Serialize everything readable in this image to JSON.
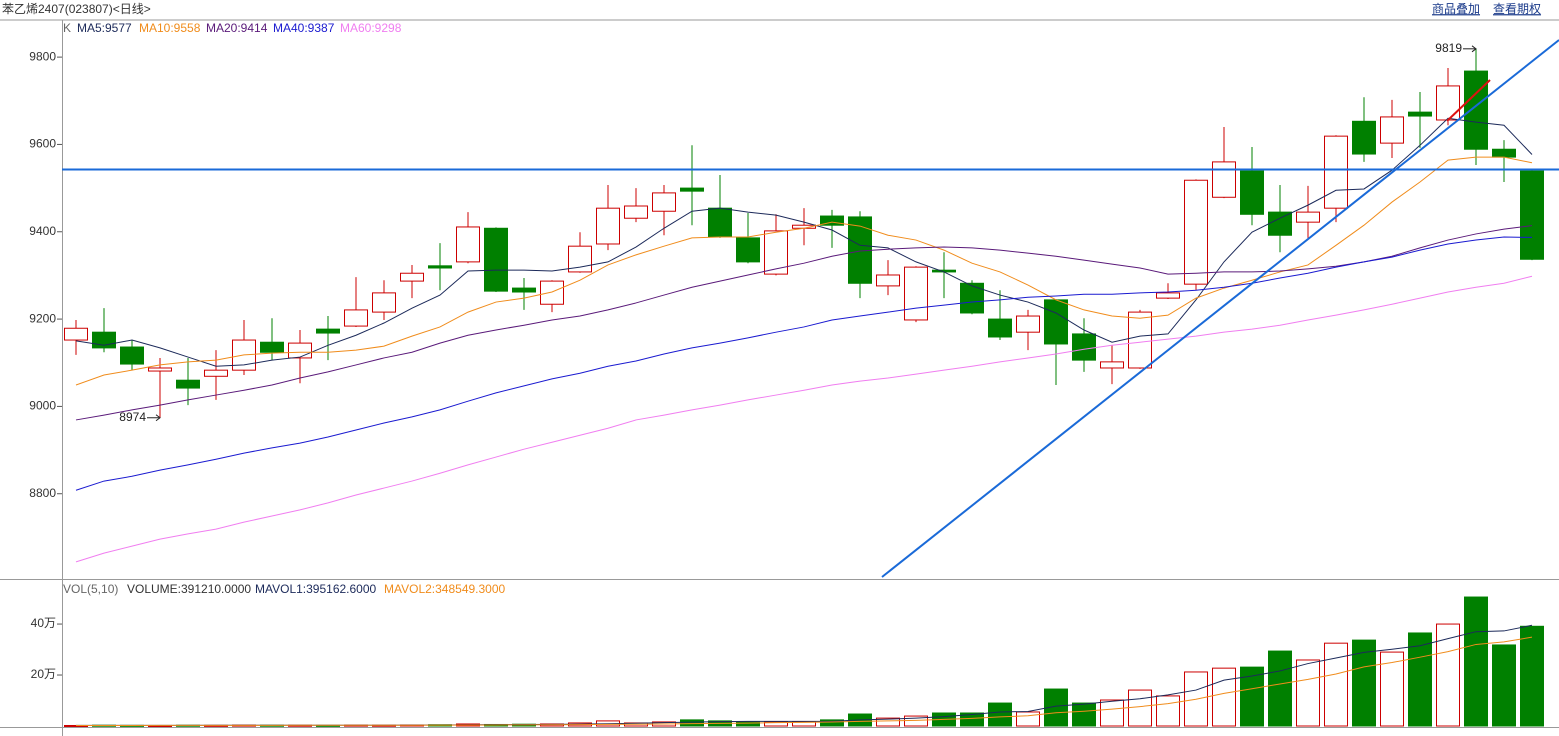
{
  "header": {
    "links": [
      "商品叠加",
      "查看期权"
    ]
  },
  "chart_data": [
    {
      "type": "candlestick",
      "title": "苯乙烯2407(023807)<日线>",
      "label": "K",
      "up_color": "#cc0000",
      "down_color": "#008000",
      "open": [
        9152,
        9170,
        9136,
        9081,
        9060,
        9069,
        9083,
        9147,
        9111,
        9177,
        9184,
        9216,
        9287,
        9322,
        9331,
        9408,
        9271,
        9234,
        9308,
        9372,
        9431,
        9447,
        9500,
        9454,
        9386,
        9303,
        9408,
        9436,
        9434,
        9276,
        9198,
        9312,
        9282,
        9200,
        9170,
        9244,
        9166,
        9088,
        9088,
        9248,
        9280,
        9479,
        9539,
        9445,
        9422,
        9454,
        9653,
        9603,
        9674,
        9656,
        9768,
        9589,
        9539
      ],
      "high": [
        9198,
        9225,
        9152,
        9111,
        9111,
        9129,
        9198,
        9202,
        9175,
        9207,
        9296,
        9289,
        9324,
        9374,
        9445,
        9410,
        9294,
        9289,
        9399,
        9507,
        9500,
        9507,
        9598,
        9530,
        9443,
        9440,
        9454,
        9450,
        9447,
        9335,
        9321,
        9353,
        9289,
        9266,
        9221,
        9246,
        9202,
        9140,
        9221,
        9282,
        9520,
        9640,
        9594,
        9507,
        9505,
        9621,
        9708,
        9702,
        9720,
        9775,
        9819,
        9610,
        9540
      ],
      "low": [
        9118,
        9124,
        9083,
        8974,
        9003,
        9015,
        9072,
        9106,
        9053,
        9106,
        9182,
        9198,
        9248,
        9266,
        9328,
        9262,
        9221,
        9216,
        9306,
        9358,
        9422,
        9392,
        9415,
        9386,
        9328,
        9300,
        9369,
        9363,
        9248,
        9255,
        9193,
        9248,
        9211,
        9152,
        9129,
        9049,
        9079,
        9051,
        9086,
        9246,
        9266,
        9477,
        9415,
        9353,
        9386,
        9422,
        9560,
        9569,
        9592,
        9644,
        9553,
        9514,
        9335
      ],
      "close": [
        9179,
        9134,
        9097,
        9088,
        9042,
        9083,
        9152,
        9124,
        9145,
        9168,
        9221,
        9260,
        9305,
        9317,
        9411,
        9264,
        9262,
        9287,
        9367,
        9454,
        9459,
        9489,
        9493,
        9388,
        9331,
        9402,
        9415,
        9415,
        9282,
        9301,
        9319,
        9308,
        9214,
        9159,
        9207,
        9143,
        9106,
        9102,
        9216,
        9260,
        9518,
        9560,
        9440,
        9392,
        9445,
        9619,
        9578,
        9663,
        9665,
        9734,
        9589,
        9571,
        9337
      ],
      "series": [
        {
          "name": "MA5:9577",
          "color": "#1c2a5a",
          "values": [
            9150,
            9140,
            9152,
            9134,
            9113,
            9092,
            9095,
            9106,
            9113,
            9140,
            9163,
            9191,
            9225,
            9255,
            9310,
            9312,
            9312,
            9310,
            9319,
            9331,
            9365,
            9408,
            9447,
            9454,
            9445,
            9438,
            9422,
            9404,
            9369,
            9363,
            9331,
            9308,
            9276,
            9255,
            9239,
            9214,
            9175,
            9147,
            9161,
            9166,
            9244,
            9331,
            9399,
            9431,
            9461,
            9495,
            9498,
            9541,
            9598,
            9660,
            9651,
            9644,
            9577
          ]
        },
        {
          "name": "MA10:9558",
          "color": "#f08c1c",
          "values": [
            9049,
            9072,
            9083,
            9095,
            9102,
            9106,
            9118,
            9122,
            9124,
            9124,
            9129,
            9138,
            9161,
            9182,
            9216,
            9239,
            9248,
            9262,
            9289,
            9324,
            9347,
            9367,
            9386,
            9388,
            9388,
            9399,
            9408,
            9422,
            9413,
            9392,
            9381,
            9358,
            9328,
            9308,
            9278,
            9244,
            9221,
            9207,
            9202,
            9209,
            9248,
            9271,
            9289,
            9308,
            9324,
            9369,
            9415,
            9468,
            9514,
            9564,
            9571,
            9571,
            9558
          ]
        },
        {
          "name": "MA20:9414",
          "color": "#5a1a7a",
          "values": [
            8969,
            8980,
            8992,
            9003,
            9015,
            9026,
            9037,
            9049,
            9065,
            9079,
            9095,
            9111,
            9124,
            9145,
            9163,
            9175,
            9186,
            9198,
            9207,
            9221,
            9237,
            9255,
            9273,
            9287,
            9301,
            9315,
            9328,
            9344,
            9356,
            9360,
            9363,
            9365,
            9363,
            9358,
            9351,
            9344,
            9335,
            9326,
            9317,
            9303,
            9305,
            9308,
            9308,
            9310,
            9315,
            9321,
            9331,
            9344,
            9363,
            9381,
            9395,
            9406,
            9414
          ]
        },
        {
          "name": "MA40:9387",
          "color": "#1a1ad0",
          "values": [
            8808,
            8829,
            8840,
            8854,
            8866,
            8879,
            8893,
            8905,
            8916,
            8930,
            8946,
            8962,
            8976,
            8992,
            9012,
            9031,
            9047,
            9063,
            9076,
            9092,
            9104,
            9120,
            9134,
            9145,
            9157,
            9170,
            9182,
            9198,
            9207,
            9216,
            9225,
            9232,
            9239,
            9244,
            9250,
            9253,
            9257,
            9257,
            9260,
            9262,
            9266,
            9273,
            9282,
            9294,
            9305,
            9319,
            9331,
            9342,
            9358,
            9372,
            9381,
            9388,
            9387
          ]
        },
        {
          "name": "MA60:9298",
          "color": "#f07ef0",
          "values": [
            8644,
            8664,
            8680,
            8696,
            8708,
            8719,
            8735,
            8749,
            8763,
            8779,
            8797,
            8813,
            8829,
            8847,
            8866,
            8884,
            8902,
            8918,
            8934,
            8950,
            8969,
            8980,
            8992,
            9003,
            9015,
            9026,
            9037,
            9049,
            9058,
            9065,
            9074,
            9083,
            9092,
            9102,
            9111,
            9120,
            9131,
            9140,
            9147,
            9154,
            9161,
            9170,
            9177,
            9186,
            9198,
            9209,
            9221,
            9234,
            9248,
            9262,
            9273,
            9282,
            9298
          ]
        }
      ],
      "ylim": [
        8607,
        9885
      ],
      "yticks": [
        8800,
        9000,
        9200,
        9400,
        9600,
        9800
      ]
    },
    {
      "type": "volume",
      "title": "VOL(5,10)",
      "series": [
        {
          "name": "VOLUME:391210.0000",
          "values": [
            2000,
            3000,
            2500,
            2000,
            3000,
            2500,
            3500,
            3000,
            3000,
            2500,
            3500,
            3000,
            4000,
            5000,
            8000,
            6000,
            7000,
            8000,
            12000,
            20000,
            12000,
            16000,
            24000,
            20000,
            16000,
            16000,
            16000,
            24000,
            47000,
            31000,
            39000,
            51000,
            51000,
            90000,
            55000,
            145000,
            90000,
            102000,
            141000,
            118000,
            212000,
            227000,
            231000,
            294000,
            259000,
            325000,
            337000,
            290000,
            365000,
            400000,
            506000,
            318000,
            391210
          ]
        },
        {
          "name": "MAVOL1:395162.6000",
          "color": "#1c2a5a",
          "values": [
            2500,
            2600,
            2600,
            2600,
            2600,
            2700,
            2800,
            2900,
            2900,
            3000,
            3100,
            3100,
            3300,
            3800,
            4600,
            5200,
            5900,
            6600,
            7600,
            9000,
            11000,
            13000,
            15000,
            17000,
            18000,
            18000,
            18000,
            18000,
            24000,
            27000,
            31000,
            37000,
            45000,
            55000,
            57000,
            78000,
            86000,
            97000,
            107000,
            122000,
            141000,
            180000,
            196000,
            216000,
            245000,
            267000,
            289000,
            301000,
            315000,
            343000,
            370000,
            373000,
            395162.6
          ]
        },
        {
          "name": "MAVOL2:348549.3000",
          "color": "#f08c1c",
          "values": [
            2000,
            2100,
            2200,
            2300,
            2400,
            2500,
            2600,
            2600,
            2700,
            2700,
            2800,
            2900,
            3000,
            3200,
            3600,
            4000,
            4400,
            4900,
            5500,
            6200,
            7000,
            8000,
            9300,
            10500,
            11500,
            13000,
            14000,
            15500,
            18000,
            20000,
            22000,
            26000,
            30000,
            36000,
            40000,
            52000,
            58000,
            66000,
            76000,
            88000,
            105000,
            128000,
            146000,
            165000,
            183000,
            204000,
            232000,
            249000,
            270000,
            292000,
            320000,
            330000,
            348549.3
          ]
        }
      ],
      "ylim": [
        0,
        565000
      ],
      "yticks": [
        {
          "value": 200000,
          "label": "20万"
        },
        {
          "value": 400000,
          "label": "40万"
        }
      ]
    }
  ]
}
